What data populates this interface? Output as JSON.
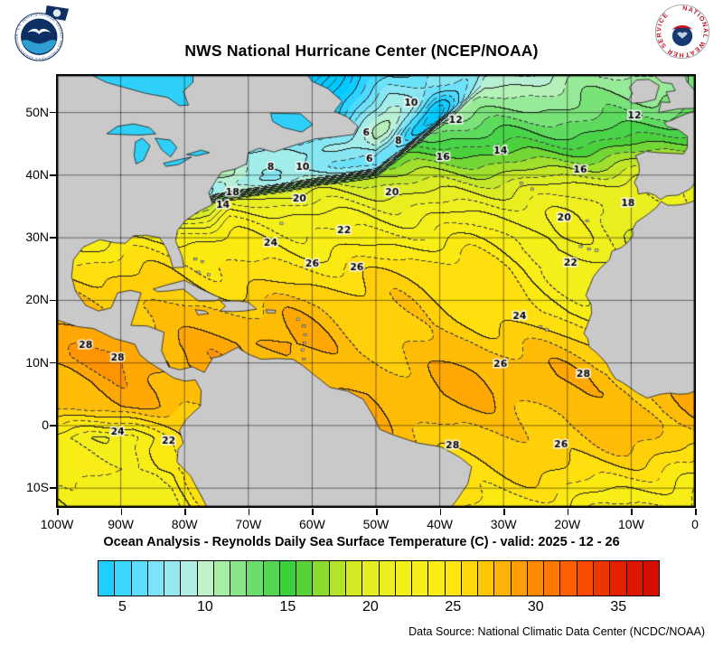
{
  "header": {
    "title": "NWS National Hurricane Center (NCEP/NOAA)"
  },
  "logos": {
    "noaa": {
      "name": "NOAA logo",
      "ring_text": "NATIONAL OCEANIC AND ATMOSPHERIC ADMINISTRATION - U.S. DEPARTMENT OF COMMERCE"
    },
    "nws": {
      "name": "National Weather Service logo",
      "ring_text": "NATIONAL WEATHER SERVICE"
    }
  },
  "map": {
    "extent": {
      "lon_min": -100,
      "lon_max": 0,
      "lat_min": -13,
      "lat_max": 56
    },
    "x_ticks": [
      {
        "lon": -100,
        "label": "100W"
      },
      {
        "lon": -90,
        "label": "90W"
      },
      {
        "lon": -80,
        "label": "80W"
      },
      {
        "lon": -70,
        "label": "70W"
      },
      {
        "lon": -60,
        "label": "60W"
      },
      {
        "lon": -50,
        "label": "50W"
      },
      {
        "lon": -40,
        "label": "40W"
      },
      {
        "lon": -30,
        "label": "30W"
      },
      {
        "lon": -20,
        "label": "20W"
      },
      {
        "lon": -10,
        "label": "10W"
      },
      {
        "lon": 0,
        "label": "0"
      }
    ],
    "y_ticks": [
      {
        "lat": 50,
        "label": "50N"
      },
      {
        "lat": 40,
        "label": "40N"
      },
      {
        "lat": 30,
        "label": "30N"
      },
      {
        "lat": 20,
        "label": "20N"
      },
      {
        "lat": 10,
        "label": "10N"
      },
      {
        "lat": 0,
        "label": "0"
      },
      {
        "lat": -10,
        "label": "10S"
      }
    ],
    "grid_step_deg": 10,
    "contour_interval_c": 1,
    "land_color": "#c9c9c9",
    "coast_color": "#1a1a1a",
    "lake_color": "#2fd0f8",
    "contour_labels": [
      {
        "t": "10",
        "lon": -44.5,
        "lat": 51.5
      },
      {
        "t": "12",
        "lon": -37.5,
        "lat": 48.8
      },
      {
        "t": "12",
        "lon": -9.5,
        "lat": 49.5
      },
      {
        "t": "14",
        "lon": -30.5,
        "lat": 43.8
      },
      {
        "t": "16",
        "lon": -39.5,
        "lat": 42.8
      },
      {
        "t": "16",
        "lon": -18,
        "lat": 40.8
      },
      {
        "t": "18",
        "lon": -10.5,
        "lat": 35.5
      },
      {
        "t": "6",
        "lon": -51.5,
        "lat": 46.8
      },
      {
        "t": "6",
        "lon": -51,
        "lat": 42.5
      },
      {
        "t": "8",
        "lon": -46.5,
        "lat": 45.5
      },
      {
        "t": "8",
        "lon": -66.5,
        "lat": 41.3
      },
      {
        "t": "10",
        "lon": -61.5,
        "lat": 41.3
      },
      {
        "t": "14",
        "lon": -74,
        "lat": 35.2
      },
      {
        "t": "18",
        "lon": -72.5,
        "lat": 37.2
      },
      {
        "t": "20",
        "lon": -62,
        "lat": 36.2
      },
      {
        "t": "20",
        "lon": -47.5,
        "lat": 37.2
      },
      {
        "t": "20",
        "lon": -20.5,
        "lat": 33.2
      },
      {
        "t": "22",
        "lon": -55,
        "lat": 31.2
      },
      {
        "t": "22",
        "lon": -19.5,
        "lat": 26
      },
      {
        "t": "24",
        "lon": -66.5,
        "lat": 29.2
      },
      {
        "t": "24",
        "lon": -27.5,
        "lat": 17.5
      },
      {
        "t": "26",
        "lon": -60,
        "lat": 25.8
      },
      {
        "t": "26",
        "lon": -53,
        "lat": 25.2
      },
      {
        "t": "26",
        "lon": -30.5,
        "lat": 9.8
      },
      {
        "t": "28",
        "lon": -17.5,
        "lat": 8.2
      },
      {
        "t": "28",
        "lon": -90.5,
        "lat": 10.8
      },
      {
        "t": "28",
        "lon": -95.5,
        "lat": 12.8
      },
      {
        "t": "24",
        "lon": -90.5,
        "lat": -1
      },
      {
        "t": "22",
        "lon": -82.5,
        "lat": -2.5
      },
      {
        "t": "26",
        "lon": -21,
        "lat": -3
      },
      {
        "t": "28",
        "lon": -38,
        "lat": -3.2
      }
    ],
    "palette_stops": [
      [
        3,
        "#00c8ff"
      ],
      [
        5,
        "#3cd7ff"
      ],
      [
        7,
        "#7ce4f8"
      ],
      [
        9,
        "#aeeee4"
      ],
      [
        10,
        "#c2f3c8"
      ],
      [
        11,
        "#a6eea6"
      ],
      [
        13,
        "#6ade6a"
      ],
      [
        15,
        "#3ccf3c"
      ],
      [
        16,
        "#58d238"
      ],
      [
        17,
        "#8cdc30"
      ],
      [
        18,
        "#b4e42a"
      ],
      [
        19,
        "#d2ea26"
      ],
      [
        20,
        "#e6ee22"
      ],
      [
        22,
        "#f2f01c"
      ],
      [
        24,
        "#faec14"
      ],
      [
        25,
        "#ffe610"
      ],
      [
        26,
        "#ffd80c"
      ],
      [
        27,
        "#ffc608"
      ],
      [
        28,
        "#ffb206"
      ],
      [
        29,
        "#ff9e04"
      ],
      [
        30,
        "#ff8a02"
      ],
      [
        31,
        "#ff7600"
      ],
      [
        32,
        "#ff6000"
      ],
      [
        33,
        "#f84a00"
      ],
      [
        34,
        "#ee3400"
      ],
      [
        35,
        "#e42000"
      ],
      [
        37,
        "#d40e00"
      ]
    ]
  },
  "caption": "Ocean Analysis - Reynolds Daily Sea Surface Temperature (C) - valid: 2025 - 12 - 26",
  "colorbar": {
    "min": 3.5,
    "max": 37.5,
    "cell_step": 1,
    "labels": [
      "5",
      "10",
      "15",
      "20",
      "25",
      "30",
      "35"
    ]
  },
  "source": "Data Source: National Climatic Data Center (NCDC/NOAA)"
}
